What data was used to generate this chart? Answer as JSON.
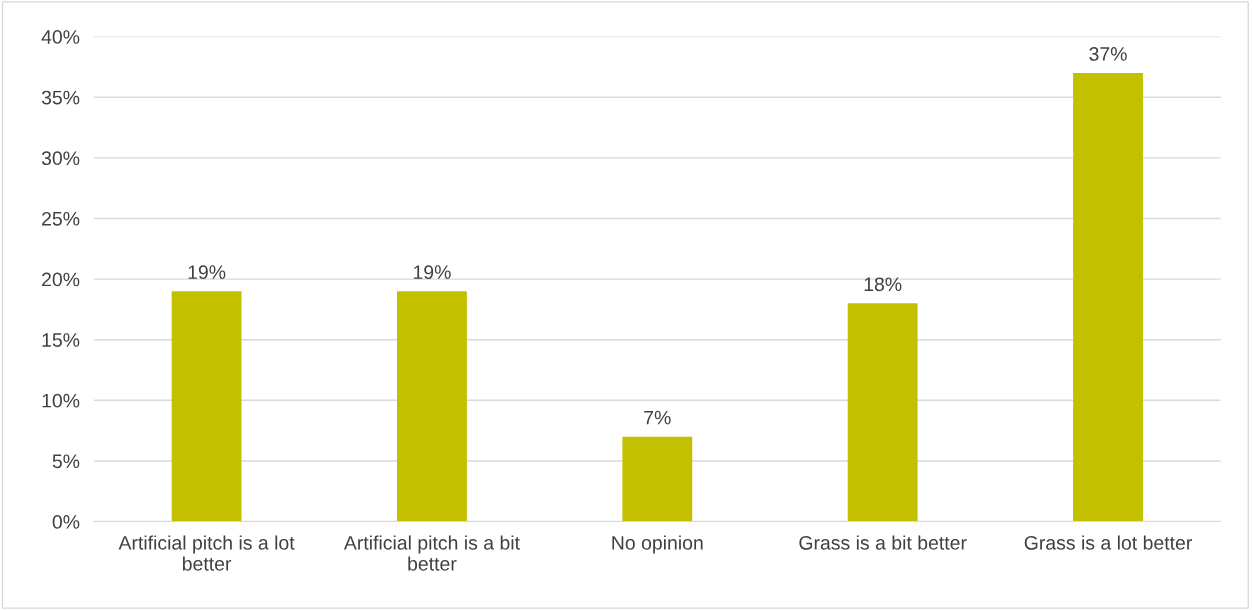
{
  "chart_data": {
    "type": "bar",
    "categories": [
      "Artificial pitch is a lot\nbetter",
      "Artificial pitch is a bit\nbetter",
      "No opinion",
      "Grass is a bit better",
      "Grass is a lot better"
    ],
    "values": [
      19,
      19,
      7,
      18,
      37
    ],
    "value_labels": [
      "19%",
      "19%",
      "7%",
      "18%",
      "37%"
    ],
    "color": "#c3c000",
    "ylim": [
      0,
      40
    ],
    "yticks": [
      {
        "value": 0,
        "label": "0%"
      },
      {
        "value": 5,
        "label": "5%"
      },
      {
        "value": 10,
        "label": "10%"
      },
      {
        "value": 15,
        "label": "15%"
      },
      {
        "value": 20,
        "label": "20%"
      },
      {
        "value": 25,
        "label": "25%"
      },
      {
        "value": 30,
        "label": "30%"
      },
      {
        "value": 35,
        "label": "35%"
      },
      {
        "value": 40,
        "label": "40%"
      }
    ],
    "grid": "y"
  }
}
